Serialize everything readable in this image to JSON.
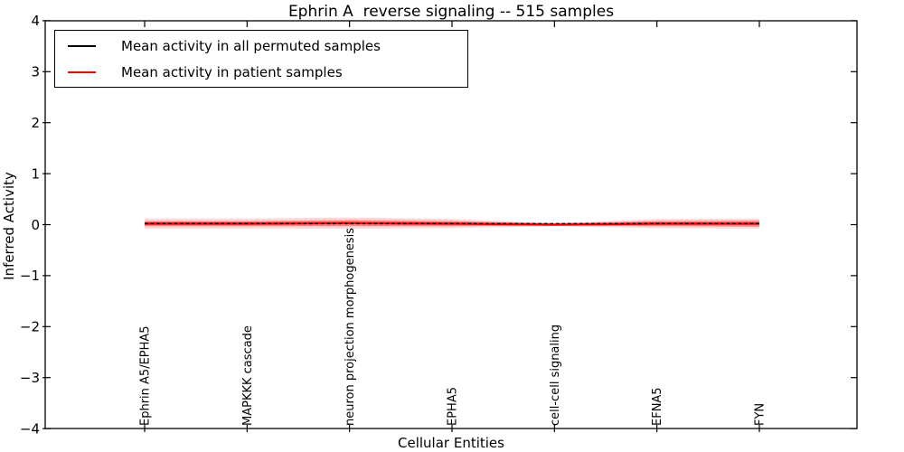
{
  "figure": {
    "background": "#ffffff"
  },
  "chart_data": {
    "type": "line",
    "title": "Ephrin A  reverse signaling -- 515 samples",
    "xlabel": "Cellular Entities",
    "ylabel": "Inferred Activity",
    "ylim": [
      -4,
      4
    ],
    "yticks": [
      4,
      3,
      2,
      1,
      0,
      -1,
      -2,
      -3,
      -4
    ],
    "grid": false,
    "legend_position": "upper left",
    "categories": [
      "Ephrin A5/EPHA5",
      "MAPKKK cascade",
      "neuron projection morphogenesis",
      "EPHA5",
      "cell-cell signaling",
      "EFNA5",
      "FYN"
    ],
    "series": [
      {
        "name": "Mean activity in all permuted samples",
        "color": "#000000",
        "line_style": "dashed",
        "values": [
          0.02,
          0.02,
          0.02,
          0.02,
          0.02,
          0.02,
          0.02
        ]
      },
      {
        "name": "Mean activity in patient samples",
        "color": "#ff0000",
        "line_style": "solid",
        "values": [
          0.02,
          0.02,
          0.03,
          0.02,
          0.0,
          0.02,
          0.02
        ]
      }
    ],
    "patient_band": {
      "color": "#ff0000",
      "inner_alpha": 0.38,
      "outer_alpha": 0.15,
      "inner_halfwidth": [
        0.05,
        0.05,
        0.06,
        0.05,
        0.02,
        0.05,
        0.06
      ],
      "outer_halfwidth": [
        0.1,
        0.1,
        0.11,
        0.09,
        0.03,
        0.09,
        0.1
      ]
    }
  }
}
